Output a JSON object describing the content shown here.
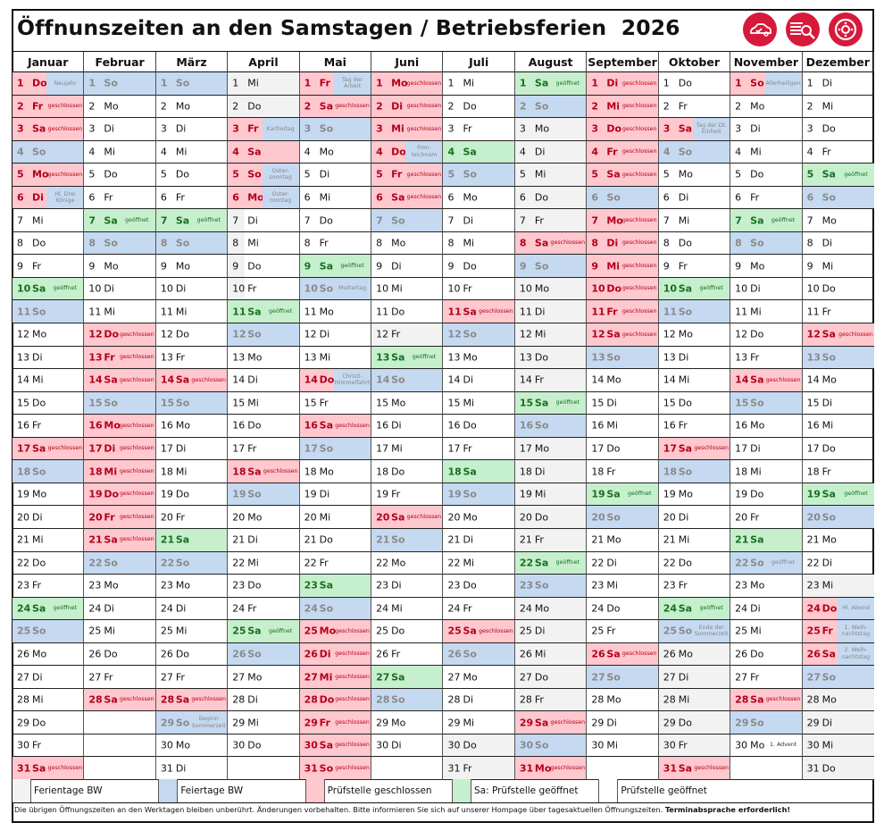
{
  "title": "Öffnunszeiten an den Samstagen / Betriebsferien  2026",
  "icons": [
    "car-check-icon",
    "car-search-icon",
    "brake-disc-icon"
  ],
  "colors": {
    "closed": "#ffc7ce",
    "holiday": "#c5d9f1",
    "open": "#c6efce",
    "vacation": "#f2f2f2",
    "accent": "#d7193a"
  },
  "months": [
    {
      "name": "Januar",
      "days": [
        "1|Do|c|Neujahr|b",
        "2|Fr|c|geschlossen",
        "3|Sa|c|geschlossen",
        "4|So|h",
        "5|Mo|c|geschlossen",
        "6|Di|c|Hl. Drei Könige|b",
        "7|Mi|w",
        "8|Do|w",
        "9|Fr|w",
        "10|Sa|o|geöffnet",
        "11|So|h",
        "12|Mo|w",
        "13|Di|w",
        "14|Mi|w",
        "15|Do|w",
        "16|Fr|w",
        "17|Sa|c|geschlossen",
        "18|So|h",
        "19|Mo|w",
        "20|Di|w",
        "21|Mi|w",
        "22|Do|w",
        "23|Fr|w",
        "24|Sa|o|geöffnet",
        "25|So|h",
        "26|Mo|w",
        "27|Di|w",
        "28|Mi|w",
        "29|Do|w",
        "30|Fr|w",
        "31|Sa|c|geschlossen"
      ]
    },
    {
      "name": "Februar",
      "days": [
        "1|So|h",
        "2|Mo|w",
        "3|Di|w",
        "4|Mi|w",
        "5|Do|w",
        "6|Fr|w",
        "7|Sa|o|geöffnet",
        "8|So|h",
        "9|Mo|w",
        "10|Di|w",
        "11|Mi|w",
        "12|Do|c|geschlossen",
        "13|Fr|c|geschlossen",
        "14|Sa|c|geschlossen",
        "15|So|h",
        "16|Mo|c|geschlossen",
        "17|Di|c|geschlossen",
        "18|Mi|c|geschlossen",
        "19|Do|c|geschlossen",
        "20|Fr|c|geschlossen",
        "21|Sa|c|geschlossen",
        "22|So|h",
        "23|Mo|w",
        "24|Di|w",
        "25|Mi|w",
        "26|Do|w",
        "27|Fr|w",
        "28|Sa|c|geschlossen"
      ]
    },
    {
      "name": "März",
      "days": [
        "1|So|h",
        "2|Mo|w",
        "3|Di|w",
        "4|Mi|w",
        "5|Do|w",
        "6|Fr|w",
        "7|Sa|o|geöffnet",
        "8|So|h",
        "9|Mo|w",
        "10|Di|w",
        "11|Mi|w",
        "12|Do|w",
        "13|Fr|w",
        "14|Sa|c|geschlossen",
        "15|So|h",
        "16|Mo|w",
        "17|Di|w",
        "18|Mi|w",
        "19|Do|w",
        "20|Fr|w",
        "21|Sa|o",
        "22|So|h",
        "23|Mo|w",
        "24|Di|w",
        "25|Mi|w",
        "26|Do|w",
        "27|Fr|w",
        "28|Sa|c|geschlossen",
        "29|So|h|Beginn Sommerzeit",
        "30|Mo|w",
        "31|Di|w"
      ]
    },
    {
      "name": "April",
      "days": [
        "1|Mi|f",
        "2|Do|f",
        "3|Fr|c|Karfreitag|b",
        "4|Sa|c",
        "5|So|c|Oster-sonntag|b",
        "6|Mo|c|Oster-montag|b",
        "7|Di|fn",
        "8|Mi|fn",
        "9|Do|fn",
        "10|Fr|fn",
        "11|Sa|o|geöffnet",
        "12|So|h",
        "13|Mo|w",
        "14|Di|w",
        "15|Mi|w",
        "16|Do|w",
        "17|Fr|w",
        "18|Sa|c|geschlossen",
        "19|So|h",
        "20|Mo|w",
        "21|Di|w",
        "22|Mi|w",
        "23|Do|w",
        "24|Fr|w",
        "25|Sa|o|geöffnet",
        "26|So|h",
        "27|Mo|w",
        "28|Di|w",
        "29|Mi|w",
        "30|Do|w"
      ]
    },
    {
      "name": "Mai",
      "days": [
        "1|Fr|c|Tag der Arbeit|b",
        "2|Sa|c|geschlossen",
        "3|So|h",
        "4|Mo|w",
        "5|Di|w",
        "6|Mi|w",
        "7|Do|w",
        "8|Fr|w",
        "9|Sa|o|geöffnet",
        "10|So|h|Muttertag",
        "11|Mo|w",
        "12|Di|w",
        "13|Mi|w",
        "14|Do|c|Christi-Himmelfahrt|b",
        "15|Fr|w",
        "16|Sa|c|geschlossen",
        "17|So|h",
        "18|Mo|w",
        "19|Di|w",
        "20|Mi|w",
        "21|Do|w",
        "22|Fr|w",
        "23|Sa|o",
        "24|So|h",
        "25|Mo|c|geschlossen",
        "26|Di|c|geschlossen",
        "27|Mi|c|geschlossen",
        "28|Do|c|geschlossen",
        "29|Fr|c|geschlossen",
        "30|Sa|c|geschlossen",
        "31|So|c|geschlossen"
      ]
    },
    {
      "name": "Juni",
      "days": [
        "1|Mo|c|geschlossen",
        "2|Di|c|geschlossen",
        "3|Mi|c|geschlossen",
        "4|Do|c|Fron-leichnam|b",
        "5|Fr|c|geschlossen",
        "6|Sa|c|geschlossen",
        "7|So|h",
        "8|Mo|w",
        "9|Di|w",
        "10|Mi|w",
        "11|Do|w",
        "12|Fr|f",
        "13|Sa|o|geöffnet",
        "14|So|h",
        "15|Mo|w",
        "16|Di|w",
        "17|Mi|w",
        "18|Do|w",
        "19|Fr|w",
        "20|Sa|c|geschlossen",
        "21|So|h",
        "22|Mo|w",
        "23|Di|w",
        "24|Mi|w",
        "25|Do|w",
        "26|Fr|w",
        "27|Sa|o",
        "28|So|h",
        "29|Mo|w",
        "30|Di|w"
      ]
    },
    {
      "name": "Juli",
      "days": [
        "1|Mi|w",
        "2|Do|w",
        "3|Fr|w",
        "4|Sa|o",
        "5|So|h",
        "6|Mo|w",
        "7|Di|w",
        "8|Mi|w",
        "9|Do|w",
        "10|Fr|w",
        "11|Sa|c|geschlossen",
        "12|So|h",
        "13|Mo|w",
        "14|Di|w",
        "15|Mi|w",
        "16|Do|w",
        "17|Fr|w",
        "18|Sa|o",
        "19|So|h",
        "20|Mo|w",
        "21|Di|w",
        "22|Mi|w",
        "23|Do|w",
        "24|Fr|w",
        "25|Sa|c|geschlossen",
        "26|So|h",
        "27|Mo|w",
        "28|Di|w",
        "29|Mi|w",
        "30|Do|f",
        "31|Fr|f"
      ]
    },
    {
      "name": "August",
      "days": [
        "1|Sa|o|geöffnet",
        "2|So|h",
        "3|Mo|f",
        "4|Di|f",
        "5|Mi|f",
        "6|Do|f",
        "7|Fr|f",
        "8|Sa|c|geschlossen",
        "9|So|h",
        "10|Mo|f",
        "11|Di|f",
        "12|Mi|f",
        "13|Do|f",
        "14|Fr|f",
        "15|Sa|o|geöffnet",
        "16|So|h",
        "17|Mo|f",
        "18|Di|f",
        "19|Mi|f",
        "20|Do|f",
        "21|Fr|f",
        "22|Sa|o|geöffnet",
        "23|So|h",
        "24|Mo|f",
        "25|Di|f",
        "26|Mi|f",
        "27|Do|f",
        "28|Fr|f",
        "29|Sa|c|geschlossen",
        "30|So|h",
        "31|Mo|c|geschlossen"
      ]
    },
    {
      "name": "September",
      "days": [
        "1|Di|c|geschlossen",
        "2|Mi|c|geschlossen",
        "3|Do|c|geschlossen",
        "4|Fr|c|geschlossen",
        "5|Sa|c|geschlossen",
        "6|So|h",
        "7|Mo|c|geschlossen",
        "8|Di|c|geschlossen",
        "9|Mi|c|geschlossen",
        "10|Do|c|geschlossen",
        "11|Fr|c|geschlossen",
        "12|Sa|c|geschlossen",
        "13|So|h",
        "14|Mo|w",
        "15|Di|w",
        "16|Mi|w",
        "17|Do|w",
        "18|Fr|w",
        "19|Sa|o|geöffnet",
        "20|So|h",
        "21|Mo|w",
        "22|Di|w",
        "23|Mi|w",
        "24|Do|w",
        "25|Fr|w",
        "26|Sa|c|geschlossen",
        "27|So|h",
        "28|Mo|w",
        "29|Di|w",
        "30|Mi|w"
      ]
    },
    {
      "name": "Oktober",
      "days": [
        "1|Do|w",
        "2|Fr|w",
        "3|Sa|c|Tag der Dt. Einheit|b",
        "4|So|h",
        "5|Mo|w",
        "6|Di|w",
        "7|Mi|w",
        "8|Do|w",
        "9|Fr|w",
        "10|Sa|o|geöffnet",
        "11|So|h",
        "12|Mo|w",
        "13|Di|w",
        "14|Mi|w",
        "15|Do|w",
        "16|Fr|w",
        "17|Sa|c|geschlossen",
        "18|So|h",
        "19|Mo|w",
        "20|Di|w",
        "21|Mi|w",
        "22|Do|w",
        "23|Fr|w",
        "24|Sa|o|geöffnet",
        "25|So|h|Ende der Sommerzeit",
        "26|Mo|f",
        "27|Di|f",
        "28|Mi|f",
        "29|Do|f",
        "30|Fr|f",
        "31|Sa|c|geschlossen"
      ]
    },
    {
      "name": "November",
      "days": [
        "1|So|c|Allerheiligen|b",
        "2|Mo|w",
        "3|Di|w",
        "4|Mi|w",
        "5|Do|w",
        "6|Fr|w",
        "7|Sa|o|geöffnet",
        "8|So|h",
        "9|Mo|w",
        "10|Di|w",
        "11|Mi|w",
        "12|Do|w",
        "13|Fr|w",
        "14|Sa|c|geschlossen",
        "15|So|h",
        "16|Mo|w",
        "17|Di|w",
        "18|Mi|w",
        "19|Do|w",
        "20|Fr|w",
        "21|Sa|o",
        "22|So|h|geöffnet",
        "23|Mo|w",
        "24|Di|w",
        "25|Mi|w",
        "26|Do|w",
        "27|Fr|w",
        "28|Sa|c|geschlossen",
        "29|So|h",
        "30|Mo|w|1. Advent|d"
      ]
    },
    {
      "name": "Dezember",
      "days": [
        "1|Di|w",
        "2|Mi|w",
        "3|Do|w",
        "4|Fr|w",
        "5|Sa|o|geöffnet",
        "6|So|h",
        "7|Mo|w",
        "8|Di|w",
        "9|Mi|w",
        "10|Do|w",
        "11|Fr|w",
        "12|Sa|c|geschlossen",
        "13|So|h",
        "14|Mo|w",
        "15|Di|w",
        "16|Mi|w",
        "17|Do|w",
        "18|Fr|w",
        "19|Sa|o|geöffnet",
        "20|So|h",
        "21|Mo|w",
        "22|Di|w",
        "23|Mi|f",
        "24|Do|c|Hl. Abend|b",
        "25|Fr|c|1. Weih-nachtstag|b",
        "26|Sa|c|2. Weih-nachtstag|b",
        "27|So|h",
        "28|Mo|f",
        "29|Di|f",
        "30|Mi|f",
        "31|Do|f"
      ]
    }
  ],
  "legend": {
    "vacation": "Ferientage BW",
    "holiday": "Feiertage BW",
    "closed": "Prüfstelle geschlossen",
    "sat_open": "Sa: Prüfstelle geöffnet",
    "open": "Prüfstelle geöffnet"
  },
  "footer": {
    "text": "Die übrigen Öffnungszeiten an den Werktagen bleiben unberührt.  Änderungen vorbehalten. Bitte informieren Sie sich auf unserer Hompage über tagesaktuellen Öffnungszeiten. ",
    "bold": "Terminabsprache erforderlich!"
  }
}
